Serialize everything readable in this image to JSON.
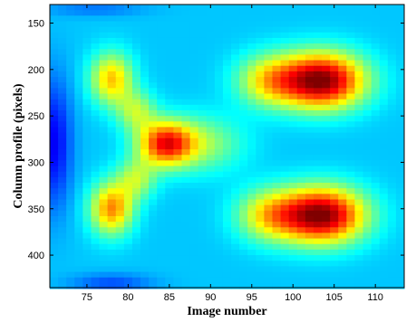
{
  "chart_data": {
    "type": "heatmap",
    "xlabel": "Image number",
    "ylabel": "Column profile (pixels)",
    "title": "",
    "colormap": "jet",
    "xlim": [
      70.5,
      113.5
    ],
    "ylim": [
      130,
      435
    ],
    "y_reversed": true,
    "x_ticks": [
      75,
      80,
      85,
      90,
      95,
      100,
      105,
      110
    ],
    "y_ticks": [
      150,
      200,
      250,
      300,
      350,
      400
    ],
    "x_tick_labels": [
      "75",
      "80",
      "85",
      "90",
      "95",
      "100",
      "105",
      "110"
    ],
    "y_tick_labels": [
      "150",
      "200",
      "250",
      "300",
      "350",
      "400"
    ],
    "value_range": [
      0,
      1
    ],
    "peaks": [
      {
        "x": 103.5,
        "y": 212,
        "value": 1.0
      },
      {
        "x": 103.5,
        "y": 357,
        "value": 1.0
      },
      {
        "x": 84,
        "y": 280,
        "value": 0.85
      },
      {
        "x": 78,
        "y": 210,
        "value": 0.7
      },
      {
        "x": 78,
        "y": 350,
        "value": 0.75
      }
    ],
    "grid": false
  }
}
